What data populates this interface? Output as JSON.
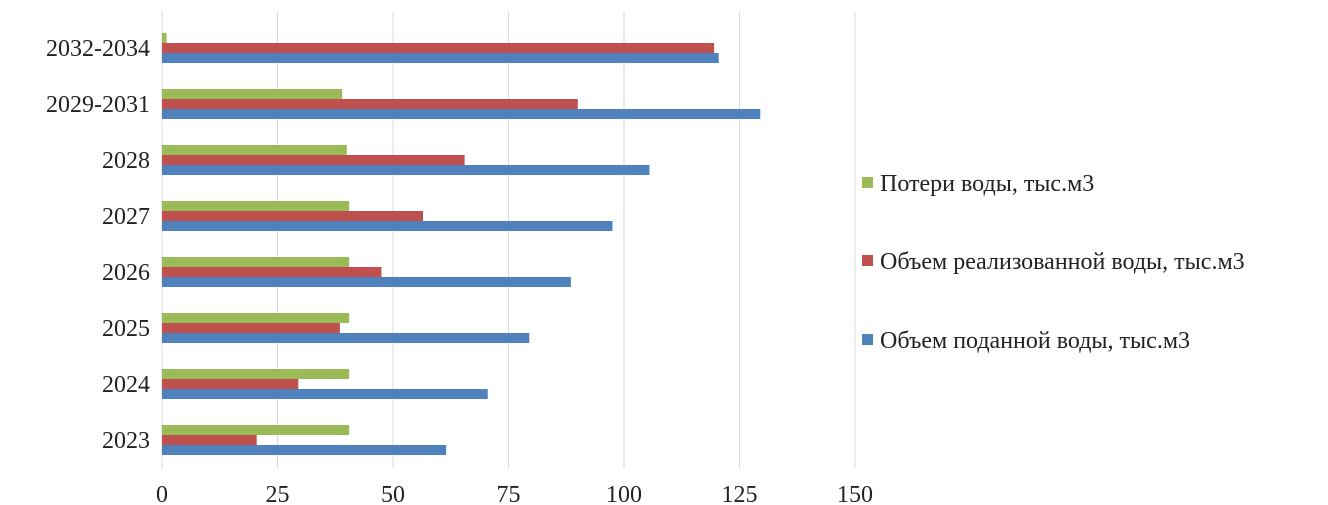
{
  "chart_data": {
    "type": "bar",
    "orientation": "horizontal",
    "categories": [
      "2023",
      "2024",
      "2025",
      "2026",
      "2027",
      "2028",
      "2029-2031",
      "2032-2034"
    ],
    "series": [
      {
        "name": "Потери воды, тыс.м3",
        "color": "#9bbb59",
        "values": [
          40.5,
          40.5,
          40.5,
          40.5,
          40.5,
          40,
          39,
          1
        ]
      },
      {
        "name": "Объем реализованной воды, тыс.м3",
        "color": "#c0504d",
        "values": [
          20.5,
          29.5,
          38.5,
          47.5,
          56.5,
          65.5,
          90,
          119.5
        ]
      },
      {
        "name": "Объем поданной воды, тыс.м3",
        "color": "#4f81bd",
        "values": [
          61.5,
          70.5,
          79.5,
          88.5,
          97.5,
          105.5,
          129.5,
          120.5
        ]
      }
    ],
    "xlim": [
      0,
      150
    ],
    "xticks": [
      "0",
      "25",
      "50",
      "75",
      "100",
      "125",
      "150"
    ],
    "grid": "vertical",
    "legend_position": "right",
    "title": "",
    "xlabel": "",
    "ylabel": ""
  }
}
